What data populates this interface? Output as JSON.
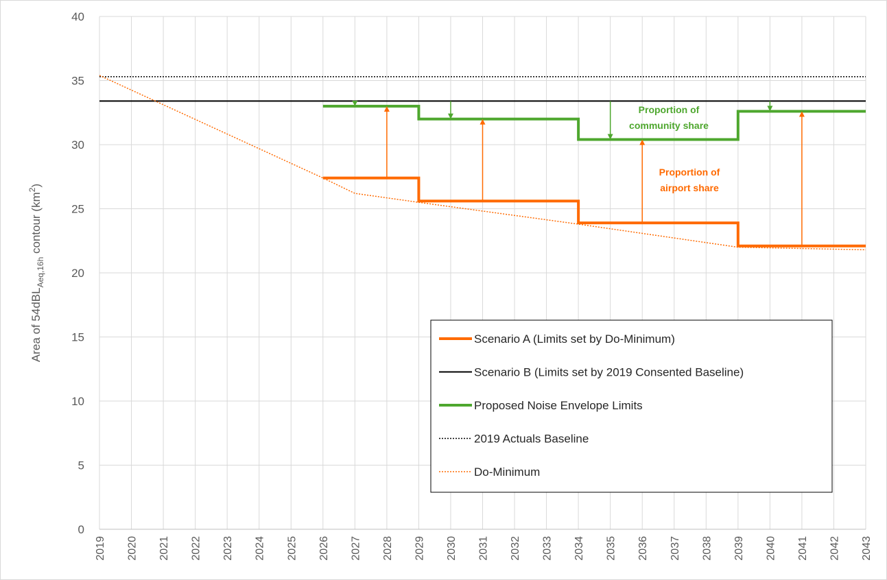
{
  "chart_data": {
    "type": "line",
    "ylabel": [
      "Area of 54dBL",
      "Aeq,16h",
      " contour (km",
      "2",
      ")"
    ],
    "xlim": [
      2019,
      2043
    ],
    "ylim": [
      0,
      40
    ],
    "xticks": [
      2019,
      2020,
      2021,
      2022,
      2023,
      2024,
      2025,
      2026,
      2027,
      2028,
      2029,
      2030,
      2031,
      2032,
      2033,
      2034,
      2035,
      2036,
      2037,
      2038,
      2039,
      2040,
      2041,
      2042,
      2043
    ],
    "yticks": [
      0,
      5,
      10,
      15,
      20,
      25,
      30,
      35,
      40
    ],
    "grid": true,
    "series": [
      {
        "name": "Scenario A (Limits set by Do-Minimum)",
        "color": "#ff6a00",
        "width": 4,
        "step": true,
        "x": [
          2026,
          2029,
          2034,
          2039,
          2043
        ],
        "values": [
          27.4,
          25.6,
          23.9,
          22.1,
          22.1
        ]
      },
      {
        "name": "Scenario B (Limits set by 2019 Consented Baseline)",
        "color": "#000000",
        "width": 2,
        "x": [
          2019,
          2043
        ],
        "values": [
          33.4,
          33.4
        ]
      },
      {
        "name": "Proposed Noise Envelope Limits",
        "color": "#4ea72e",
        "width": 4,
        "step": true,
        "x": [
          2026,
          2029,
          2034,
          2039,
          2043
        ],
        "values": [
          33.0,
          32.0,
          30.4,
          32.6,
          32.6
        ]
      },
      {
        "name": "2019 Actuals Baseline",
        "color": "#000000",
        "width": 1.5,
        "dotted": true,
        "x": [
          2019,
          2043
        ],
        "values": [
          35.3,
          35.3
        ]
      },
      {
        "name": "Do-Minimum",
        "color": "#ff6a00",
        "width": 1.5,
        "dotted": true,
        "x": [
          2019,
          2026,
          2027,
          2029,
          2034,
          2039,
          2043
        ],
        "values": [
          35.4,
          27.4,
          26.2,
          25.5,
          23.8,
          22.0,
          21.8
        ]
      }
    ],
    "annotations": [
      {
        "lines": [
          "Proportion of",
          "community share"
        ],
        "color": "#4ea72e"
      },
      {
        "lines": [
          "Proportion of",
          "airport share"
        ],
        "color": "#ff6a00"
      }
    ]
  }
}
